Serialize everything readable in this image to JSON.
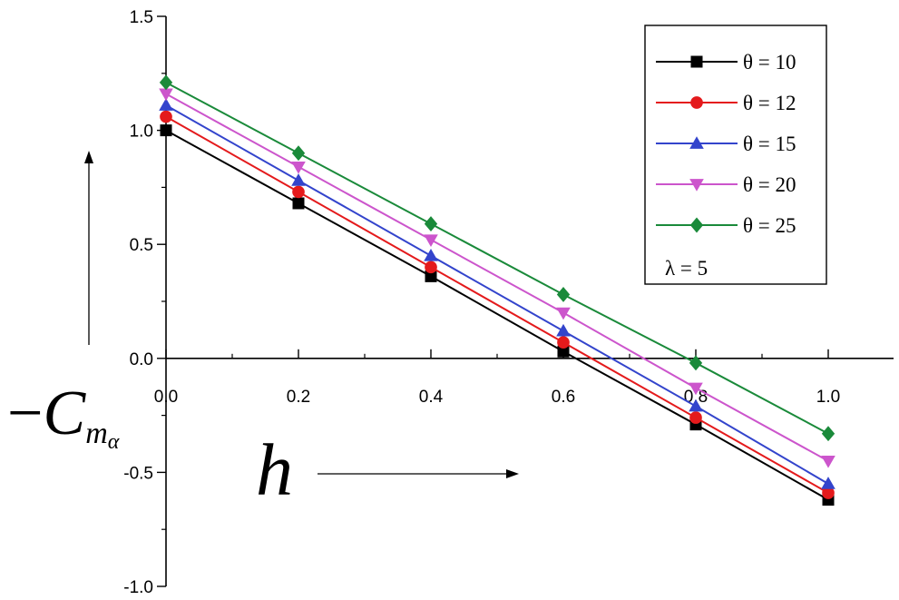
{
  "chart_data": {
    "type": "line",
    "title": "",
    "xlabel": "h",
    "ylabel": {
      "prefix": "−",
      "main": "C",
      "sub": "m",
      "subsub": "α"
    },
    "xlim": [
      0,
      1.1
    ],
    "ylim": [
      -1.0,
      1.5
    ],
    "x_ticks": [
      0.0,
      0.2,
      0.4,
      0.6,
      0.8,
      1.0
    ],
    "x_tick_labels": [
      "0.0",
      "0.2",
      "0.4",
      "0.6",
      "0.8",
      "1.0"
    ],
    "y_ticks": [
      1.5,
      1.0,
      0.5,
      0.0,
      -0.5,
      -1.0
    ],
    "y_tick_labels": [
      "1.5",
      "1.0",
      "0.5",
      "0.0",
      "-0.5",
      "-1.0"
    ],
    "grid": false,
    "legend_position": "top-right",
    "legend_note": "λ = 5",
    "x": [
      0.0,
      0.2,
      0.4,
      0.6,
      0.8,
      1.0
    ],
    "series": [
      {
        "name": "θ = 10",
        "color": "#000000",
        "marker": "square",
        "values": [
          1.0,
          0.68,
          0.36,
          0.03,
          -0.29,
          -0.62
        ]
      },
      {
        "name": "θ = 12",
        "color": "#e41a1c",
        "marker": "circle",
        "values": [
          1.06,
          0.73,
          0.4,
          0.07,
          -0.26,
          -0.59
        ]
      },
      {
        "name": "θ = 15",
        "color": "#3344cc",
        "marker": "triangle-up",
        "values": [
          1.11,
          0.78,
          0.45,
          0.12,
          -0.21,
          -0.55
        ]
      },
      {
        "name": "θ = 20",
        "color": "#cc55cc",
        "marker": "triangle-down",
        "values": [
          1.16,
          0.84,
          0.52,
          0.2,
          -0.13,
          -0.45
        ]
      },
      {
        "name": "θ = 25",
        "color": "#1a8a3a",
        "marker": "diamond",
        "values": [
          1.21,
          0.9,
          0.59,
          0.28,
          -0.02,
          -0.33
        ]
      }
    ]
  }
}
